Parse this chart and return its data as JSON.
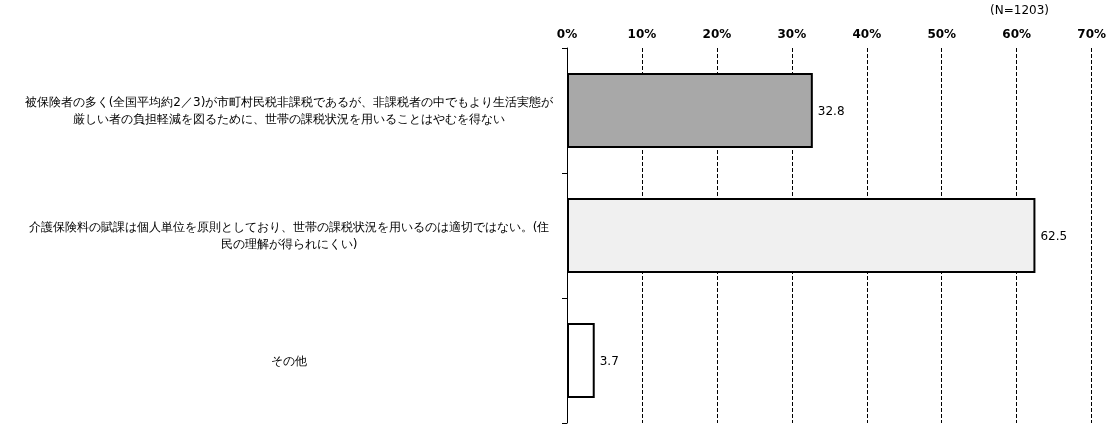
{
  "chart_data": {
    "type": "bar",
    "orientation": "horizontal",
    "categories": [
      "被保険者の多く(全国平均約2／3)が市町村民税非課税であるが、非課税者の中でもより生活実態が厳しい者の負担軽減を図るために、世帯の課税状況を用いることはやむを得ない",
      "介護保険料の賦課は個人単位を原則としており、世帯の課税状況を用いるのは適切ではない。(住民の理解が得られにくい)",
      "その他"
    ],
    "values": [
      32.8,
      62.5,
      3.7
    ],
    "colors": [
      "#a8a8a8",
      "#f0f0f0",
      "#ffffff"
    ],
    "xlim": [
      0,
      70
    ],
    "xticks": [
      {
        "value": 0,
        "label": "0%"
      },
      {
        "value": 10,
        "label": "10%"
      },
      {
        "value": 20,
        "label": "20%"
      },
      {
        "value": 30,
        "label": "30%"
      },
      {
        "value": 40,
        "label": "40%"
      },
      {
        "value": 50,
        "label": "50%"
      },
      {
        "value": 60,
        "label": "60%"
      },
      {
        "value": 70,
        "label": "70%"
      }
    ],
    "grid": "x",
    "data_labels": true,
    "annotations": [
      "(N=1203)"
    ]
  }
}
